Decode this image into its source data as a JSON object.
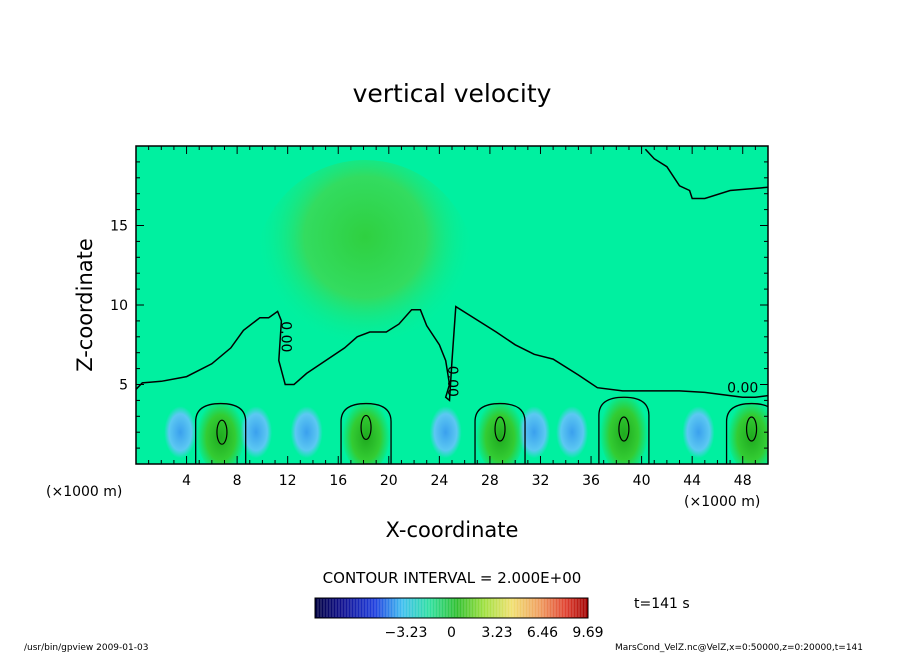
{
  "chart_data": {
    "type": "heatmap",
    "title": "vertical velocity",
    "xlabel": "X-coordinate",
    "ylabel": "Z-coordinate",
    "x_unit": "(×1000 m)",
    "y_unit": "(×1000 m)",
    "xlim": [
      0,
      50
    ],
    "ylim": [
      0,
      20
    ],
    "x_ticks": [
      4,
      8,
      12,
      16,
      20,
      24,
      28,
      32,
      36,
      40,
      44,
      48
    ],
    "y_ticks": [
      5,
      10,
      15
    ],
    "contour_interval": "CONTOUR INTERVAL = 2.000E+00",
    "contour_labels": [
      {
        "text": "0.00",
        "x": 11.5,
        "z": 8.0,
        "rotation": -90
      },
      {
        "text": "0.00",
        "x": 24.7,
        "z": 5.2,
        "rotation": -90
      },
      {
        "text": "0.00",
        "x": 48.0,
        "z": 4.5,
        "rotation": 0
      }
    ],
    "zero_contour": [
      [
        0,
        4.7
      ],
      [
        0.5,
        5.1
      ],
      [
        2,
        5.2
      ],
      [
        4,
        5.5
      ],
      [
        6,
        6.3
      ],
      [
        7.5,
        7.3
      ],
      [
        8.5,
        8.4
      ],
      [
        9.8,
        9.2
      ],
      [
        10.5,
        9.2
      ],
      [
        11.2,
        9.6
      ],
      [
        11.5,
        9.0
      ],
      [
        11.3,
        6.5
      ],
      [
        11.8,
        5.0
      ],
      [
        12.5,
        5.0
      ],
      [
        13.5,
        5.7
      ],
      [
        15,
        6.5
      ],
      [
        16.5,
        7.3
      ],
      [
        17.5,
        8.0
      ],
      [
        18.5,
        8.3
      ],
      [
        19.8,
        8.3
      ],
      [
        20.8,
        8.8
      ],
      [
        21.8,
        9.7
      ],
      [
        22.5,
        9.7
      ],
      [
        23,
        8.7
      ],
      [
        24,
        7.5
      ],
      [
        24.5,
        6.5
      ],
      [
        24.8,
        5.0
      ],
      [
        24.5,
        4.2
      ],
      [
        24.8,
        4.0
      ],
      [
        25,
        6.5
      ],
      [
        25.3,
        9.9
      ],
      [
        26.5,
        9.3
      ],
      [
        28.5,
        8.3
      ],
      [
        30,
        7.5
      ],
      [
        31.5,
        6.9
      ],
      [
        33,
        6.6
      ],
      [
        35,
        5.6
      ],
      [
        36.5,
        4.8
      ],
      [
        38.5,
        4.6
      ],
      [
        41,
        4.6
      ],
      [
        43,
        4.6
      ],
      [
        45,
        4.5
      ],
      [
        47,
        4.3
      ],
      [
        48,
        4.2
      ],
      [
        49,
        4.2
      ],
      [
        50,
        4.3
      ]
    ],
    "upper_contour": [
      [
        40.3,
        19.8
      ],
      [
        41,
        19.2
      ],
      [
        42,
        18.7
      ],
      [
        43,
        17.5
      ],
      [
        43.8,
        17.2
      ],
      [
        44,
        16.7
      ],
      [
        45,
        16.7
      ],
      [
        47,
        17.2
      ],
      [
        50,
        17.4
      ]
    ],
    "updraft_cells": [
      {
        "x": 6.7,
        "z_top": 3.8,
        "inner_x": 6.8,
        "inner_z": 2.0
      },
      {
        "x": 18.2,
        "z_top": 3.8,
        "inner_x": 18.2,
        "inner_z": 2.3
      },
      {
        "x": 28.8,
        "z_top": 3.8,
        "inner_x": 28.8,
        "inner_z": 2.2
      },
      {
        "x": 38.6,
        "z_top": 4.2,
        "inner_x": 38.6,
        "inner_z": 2.2
      },
      {
        "x": 48.7,
        "z_top": 3.8,
        "inner_x": 48.7,
        "inner_z": 2.2
      }
    ],
    "downdraft_regions_x": [
      3.5,
      9.5,
      13.5,
      24.5,
      31.5,
      34.5,
      44.5
    ],
    "colors": {
      "background": "#00f0a0",
      "updraft": "#33cc33",
      "downdraft": "#4aaef0",
      "positive_strong": "#1faa1f"
    },
    "colorbar": {
      "ticks": [
        "−3.23",
        "0",
        "3.23",
        "6.46",
        "9.69"
      ],
      "tick_values": [
        -3.23,
        0,
        3.23,
        6.46,
        9.69
      ],
      "range": [
        -9.69,
        9.69
      ]
    },
    "time_label": "t=141 s",
    "grid": false
  },
  "footer": {
    "left": "/usr/bin/gpview   2009-01-03",
    "right": "MarsCond_VelZ.nc@VelZ,x=0:50000,z=0:20000,t=141"
  }
}
